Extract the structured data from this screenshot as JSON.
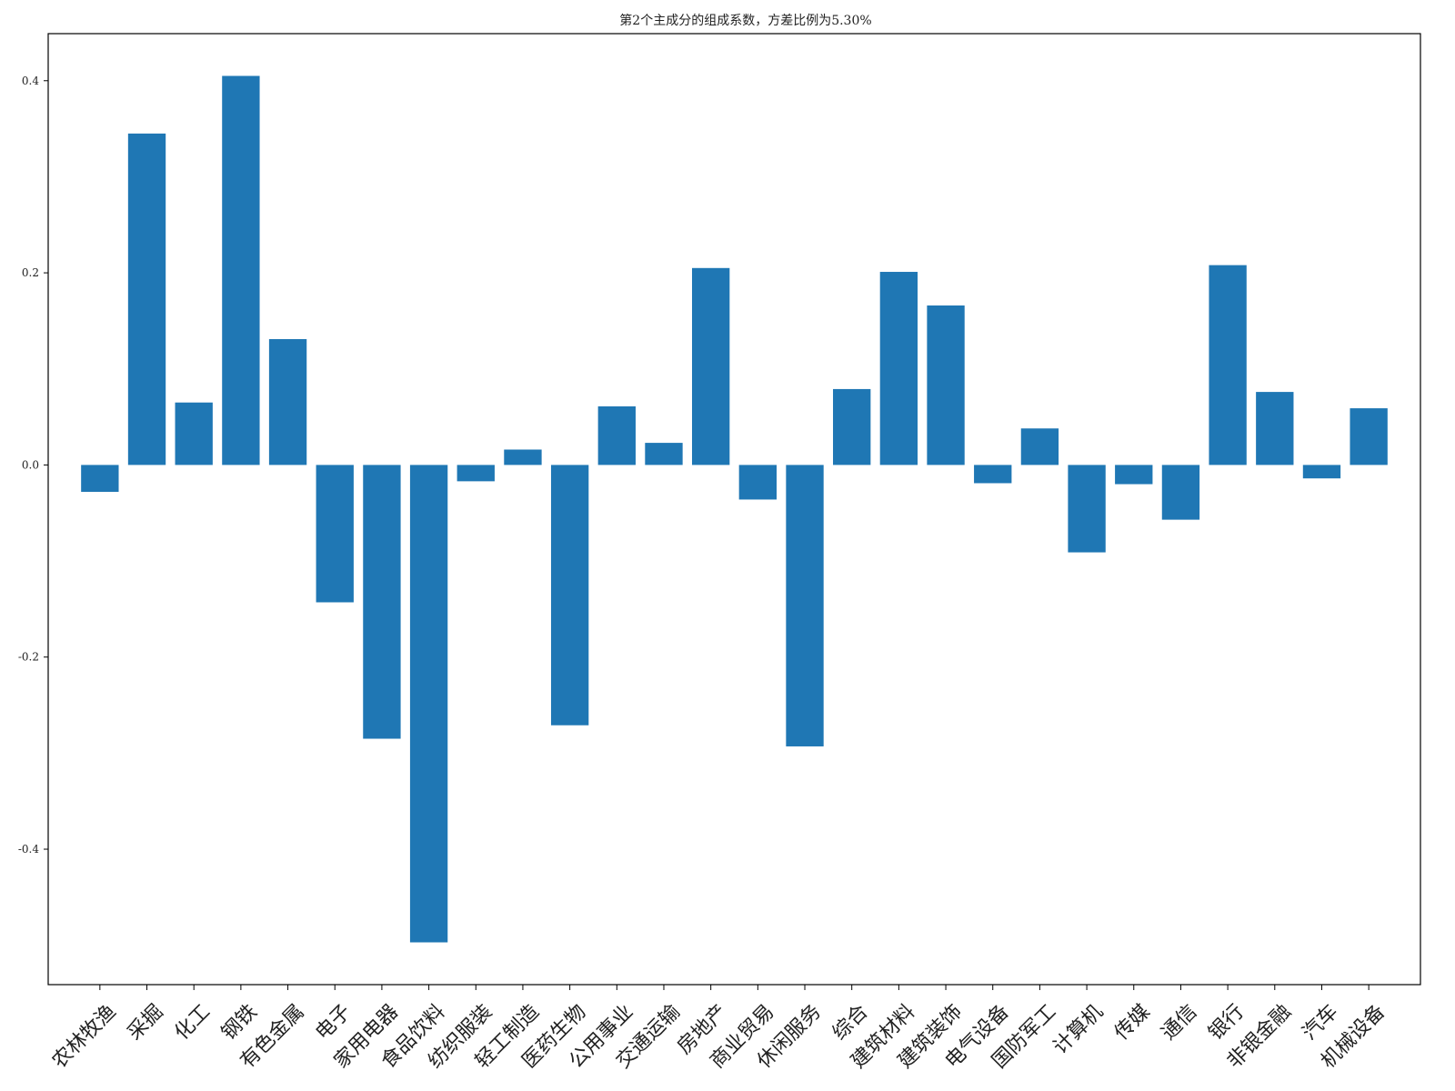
{
  "chart_data": {
    "type": "bar",
    "title": "第2个主成分的组成系数，方差比例为5.30%",
    "xlabel": "",
    "ylabel": "",
    "categories": [
      "农林牧渔",
      "采掘",
      "化工",
      "钢铁",
      "有色金属",
      "电子",
      "家用电器",
      "食品饮料",
      "纺织服装",
      "轻工制造",
      "医药生物",
      "公用事业",
      "交通运输",
      "房地产",
      "商业贸易",
      "休闲服务",
      "综合",
      "建筑材料",
      "建筑装饰",
      "电气设备",
      "国防军工",
      "计算机",
      "传媒",
      "通信",
      "银行",
      "非银金融",
      "汽车",
      "机械设备"
    ],
    "values": [
      -0.028,
      0.345,
      0.065,
      0.405,
      0.131,
      -0.143,
      -0.285,
      -0.497,
      -0.017,
      0.016,
      -0.271,
      0.061,
      0.023,
      0.205,
      -0.036,
      -0.293,
      0.079,
      0.201,
      0.166,
      -0.019,
      0.038,
      -0.091,
      -0.02,
      -0.057,
      0.208,
      0.076,
      -0.014,
      0.059
    ],
    "ylim": [
      -0.541,
      0.449
    ],
    "yticks": [
      -0.4,
      -0.2,
      0.0,
      0.2,
      0.4
    ],
    "ytick_labels": [
      "-0.4",
      "-0.2",
      "0.0",
      "0.2",
      "0.4"
    ],
    "grid": false,
    "bar_color": "#1f77b4"
  }
}
